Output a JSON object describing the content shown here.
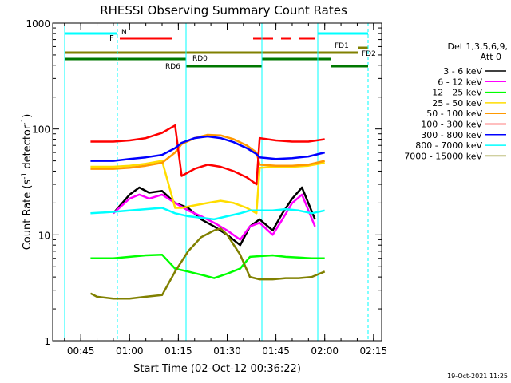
{
  "chart_data": {
    "type": "line",
    "title": "RHESSI Observing Summary Count Rates",
    "xlabel": "Start Time (02-Oct-12 00:36:22)",
    "ylabel_main": "Count Rate (s",
    "ylabel_sup1": "-1",
    "ylabel_mid": " detector",
    "ylabel_sup2": "-1",
    "ylabel_end": ")",
    "yscale": "log",
    "ylim": [
      1,
      1000
    ],
    "xlim_minutes": [
      36.37,
      137.5
    ],
    "x_ticks": [
      {
        "label": "00:45",
        "m": 45
      },
      {
        "label": "01:00",
        "m": 60
      },
      {
        "label": "01:15",
        "m": 75
      },
      {
        "label": "01:30",
        "m": 90
      },
      {
        "label": "01:45",
        "m": 105
      },
      {
        "label": "02:00",
        "m": 120
      },
      {
        "label": "02:15",
        "m": 135
      }
    ],
    "y_ticks": [
      {
        "label": "1",
        "v": 1
      },
      {
        "label": "10",
        "v": 10
      },
      {
        "label": "100",
        "v": 100
      },
      {
        "label": "1000",
        "v": 1000
      }
    ],
    "legend_header": [
      "Det 1,3,5,6,9,",
      "Att 0"
    ],
    "series": [
      {
        "name": "3 - 6 keV",
        "color": "#000000",
        "x": [
          48,
          55,
          60,
          63,
          66,
          70,
          74,
          78,
          82,
          86,
          90,
          94,
          97,
          100,
          104,
          107,
          110,
          113,
          117
        ],
        "y": [
          0,
          16,
          24,
          28,
          25,
          26,
          20,
          18,
          14,
          12,
          10,
          8,
          12,
          14,
          11,
          16,
          22,
          28,
          14
        ]
      },
      {
        "name": "6 - 12 keV",
        "color": "#ff00ff",
        "x": [
          48,
          55,
          60,
          63,
          66,
          70,
          74,
          78,
          82,
          86,
          90,
          94,
          97,
          100,
          104,
          107,
          110,
          113,
          117
        ],
        "y": [
          0,
          16,
          22,
          24,
          22,
          24,
          20,
          17,
          15,
          13,
          11,
          9,
          12,
          13,
          10,
          14,
          20,
          24,
          12
        ]
      },
      {
        "name": "12 - 25 keV",
        "color": "#00ff00",
        "x": [
          48,
          55,
          60,
          65,
          70,
          74,
          78,
          82,
          86,
          90,
          94,
          97,
          100,
          104,
          108,
          112,
          116,
          120
        ],
        "y": [
          6,
          6,
          6.2,
          6.4,
          6.5,
          4.8,
          4.5,
          4.2,
          3.9,
          4.3,
          4.8,
          6.2,
          6.3,
          6.4,
          6.2,
          6.1,
          6.0,
          6.0
        ]
      },
      {
        "name": "25 - 50 keV",
        "color": "#ffdd00",
        "x": [
          48,
          55,
          60,
          65,
          70,
          74,
          76,
          80,
          84,
          88,
          92,
          96,
          99,
          100,
          105,
          110,
          115,
          120
        ],
        "y": [
          44,
          44,
          45,
          47,
          50,
          18,
          18,
          19,
          20,
          21,
          20,
          18,
          16,
          43,
          44,
          44,
          45,
          48
        ]
      },
      {
        "name": "50 - 100 keV",
        "color": "#ff9900",
        "x": [
          48,
          55,
          60,
          65,
          70,
          74,
          76,
          80,
          84,
          88,
          92,
          96,
          99,
          100,
          105,
          110,
          115,
          120
        ],
        "y": [
          42,
          42,
          43,
          45,
          48,
          60,
          72,
          82,
          88,
          87,
          80,
          70,
          60,
          46,
          45,
          45,
          46,
          50
        ]
      },
      {
        "name": "100 - 300 keV",
        "color": "#ff0000",
        "x": [
          48,
          55,
          60,
          65,
          70,
          74,
          76,
          80,
          84,
          88,
          92,
          96,
          99,
          100,
          105,
          110,
          115,
          120
        ],
        "y": [
          76,
          76,
          78,
          82,
          92,
          108,
          36,
          42,
          46,
          44,
          40,
          35,
          30,
          82,
          78,
          76,
          76,
          80
        ]
      },
      {
        "name": "300 - 800 keV",
        "color": "#0000ff",
        "x": [
          48,
          55,
          60,
          65,
          70,
          74,
          76,
          80,
          84,
          88,
          92,
          96,
          99,
          100,
          105,
          110,
          115,
          120
        ],
        "y": [
          50,
          50,
          52,
          54,
          57,
          66,
          74,
          82,
          85,
          82,
          75,
          66,
          58,
          54,
          52,
          53,
          55,
          60
        ]
      },
      {
        "name": "800 - 7000 keV",
        "color": "#00ffff",
        "x": [
          48,
          55,
          60,
          65,
          70,
          74,
          78,
          82,
          86,
          90,
          94,
          97,
          100,
          104,
          108,
          112,
          116,
          120
        ],
        "y": [
          16,
          16.5,
          17,
          17.5,
          18,
          16,
          15,
          14.5,
          14,
          15,
          16,
          17,
          17,
          17,
          17.5,
          17,
          16,
          17
        ]
      },
      {
        "name": "7000 - 15000 keV",
        "color": "#808000",
        "x": [
          48,
          50,
          55,
          60,
          65,
          70,
          74,
          78,
          82,
          86,
          88,
          90,
          94,
          97,
          100,
          104,
          108,
          112,
          116,
          120
        ],
        "y": [
          2.8,
          2.6,
          2.5,
          2.5,
          2.6,
          2.7,
          4.5,
          7,
          9.5,
          11,
          11.5,
          10,
          6.5,
          4,
          3.8,
          3.8,
          3.9,
          3.9,
          4,
          4.5
        ]
      }
    ],
    "flag_labels": [
      {
        "text": "N",
        "color": "#00ffff"
      },
      {
        "text": "F",
        "color": "#ff0000"
      },
      {
        "text": "FD1",
        "color": "#808000"
      },
      {
        "text": "FD2",
        "color": "#808000"
      },
      {
        "text": "RD0",
        "color": "#007700"
      },
      {
        "text": "RD6",
        "color": "#007700"
      }
    ]
  },
  "timestamp": "19-Oct-2021 11:25"
}
